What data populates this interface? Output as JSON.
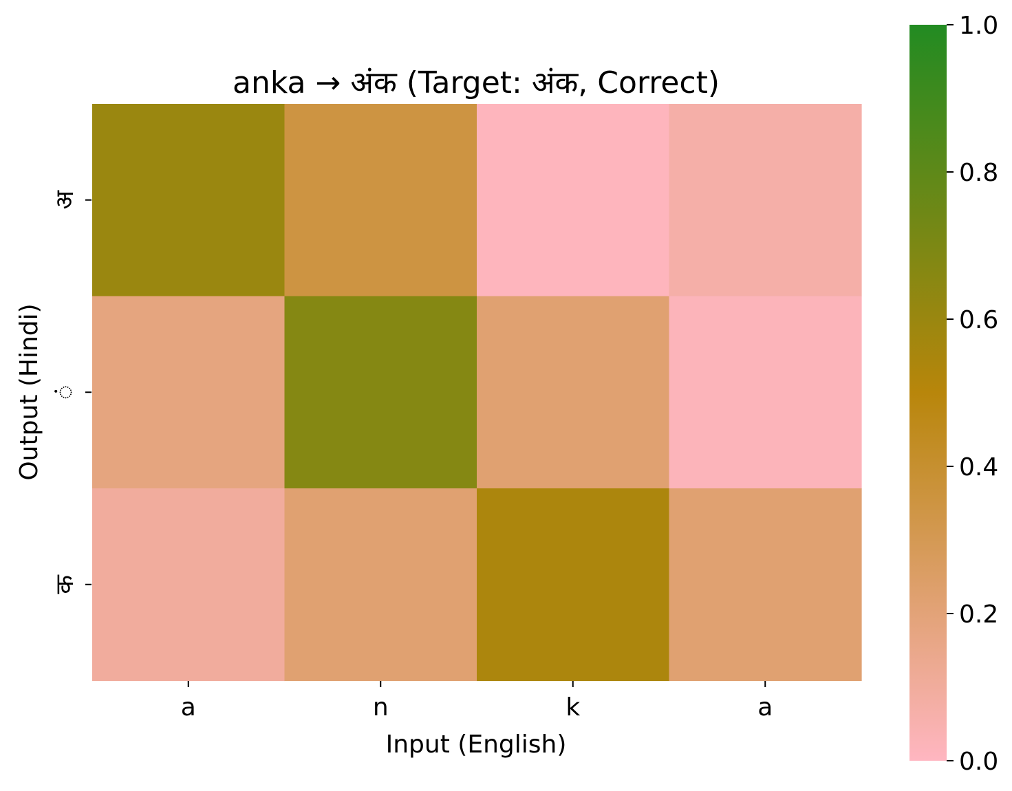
{
  "chart_data": {
    "type": "heatmap",
    "title": "anka → अंक (Target: अंक, Correct)",
    "xlabel": "Input (English)",
    "ylabel": "Output (Hindi)",
    "x_categories": [
      "a",
      "n",
      "k",
      "a"
    ],
    "y_categories": [
      "अ",
      "ं",
      "क"
    ],
    "values": [
      [
        0.6,
        0.35,
        0.01,
        0.07
      ],
      [
        0.18,
        0.67,
        0.22,
        0.02
      ],
      [
        0.1,
        0.22,
        0.54,
        0.22
      ]
    ],
    "colorbar": {
      "range": [
        0,
        1
      ],
      "ticks": [
        "0.0",
        "0.2",
        "0.4",
        "0.6",
        "0.8",
        "1.0"
      ],
      "colors": [
        "#ffb6c1",
        "#b8860b",
        "#228b22"
      ]
    },
    "grid": false
  }
}
